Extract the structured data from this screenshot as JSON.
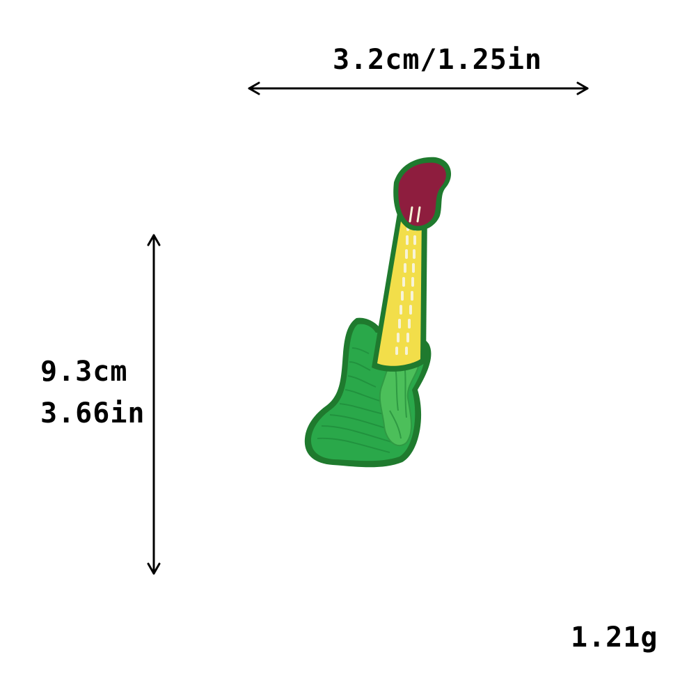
{
  "dimensions": {
    "width_label": "3.2cm/1.25in",
    "height_cm_label": "9.3cm",
    "height_in_label": "3.66in",
    "weight_label": "1.21g"
  },
  "product": {
    "image": "guitar-patch-icon",
    "colors": {
      "body": "#2aa84a",
      "body_dark": "#1e8a3a",
      "border": "#1f7a2e",
      "headstock": "#8e1d3e",
      "neck": "#f2de4a",
      "frets": "#f7f3d8",
      "pickguard": "#4cbf5a"
    }
  },
  "arrows": {
    "color": "#000000"
  }
}
